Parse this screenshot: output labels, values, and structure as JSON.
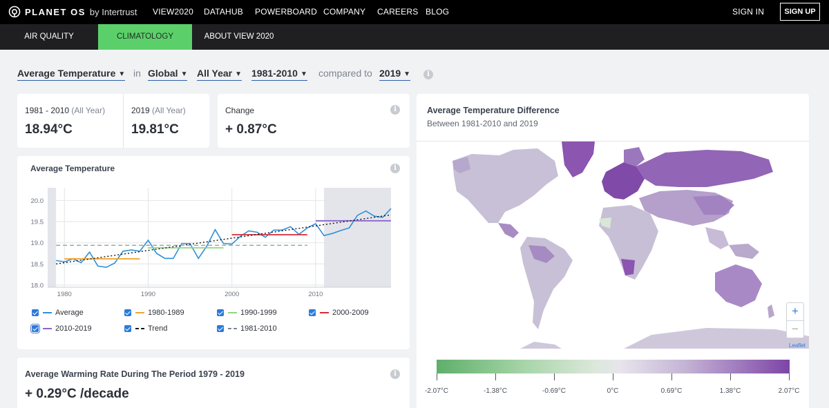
{
  "brand": {
    "name": "PLANET OS",
    "by": "by Intertrust"
  },
  "nav": {
    "items": [
      "VIEW2020",
      "DATAHUB",
      "POWERBOARD",
      "COMPANY",
      "CAREERS",
      "BLOG"
    ],
    "signin": "SIGN IN",
    "signup": "SIGN UP"
  },
  "subnav": {
    "tabs": [
      "AIR QUALITY",
      "CLIMATOLOGY",
      "ABOUT VIEW 2020"
    ],
    "active": "CLIMATOLOGY"
  },
  "filters": {
    "variable": "Average Temperature",
    "in": "in",
    "region": "Global",
    "season": "All Year",
    "baseline": "1981-2010",
    "compared": "compared to",
    "year": "2019",
    "info": "i"
  },
  "stats": {
    "baseline_label": "1981 - 2010",
    "baseline_suffix": "(All Year)",
    "baseline_value": "18.94°C",
    "current_label": "2019",
    "current_suffix": "(All Year)",
    "current_value": "19.81°C",
    "change_label": "Change",
    "change_value": "+ 0.87°C"
  },
  "chart_card": {
    "title": "Average Temperature"
  },
  "legend": [
    {
      "label": "Average",
      "color": "#2f8fd8",
      "dash": false
    },
    {
      "label": "1980-1989",
      "color": "#f0a630",
      "dash": false
    },
    {
      "label": "1990-1999",
      "color": "#8fd67a",
      "dash": false
    },
    {
      "label": "2000-2009",
      "color": "#d62a37",
      "dash": false
    },
    {
      "label": "2010-2019",
      "color": "#8c63cf",
      "dash": false
    },
    {
      "label": "Trend",
      "color": "#111111",
      "dash": true
    },
    {
      "label": "1981-2010",
      "color": "#7c8591",
      "dash": true
    }
  ],
  "warming": {
    "title": "Average Warming Rate During The Period 1979 - 2019",
    "value": "+ 0.29°C /decade"
  },
  "map": {
    "title": "Average Temperature Difference",
    "subtitle": "Between 1981-2010 and 2019",
    "zoom_in": "+",
    "zoom_out": "−",
    "attribution": "Leaflet",
    "scale_ticks": [
      "-2.07°C",
      "-1.38°C",
      "-0.69°C",
      "0°C",
      "0.69°C",
      "1.38°C",
      "2.07°C"
    ]
  },
  "chart_data": {
    "type": "line",
    "title": "Average Temperature",
    "xlim": [
      1978,
      2019
    ],
    "ylim": [
      17.95,
      20.3
    ],
    "x_ticks": [
      1980,
      1990,
      2000,
      2010
    ],
    "y_ticks": [
      18.0,
      18.5,
      19.0,
      19.5,
      20.0
    ],
    "grid": true,
    "shaded_ranges": [
      [
        1978,
        1979
      ],
      [
        2011,
        2019
      ]
    ],
    "series": [
      {
        "name": "Average",
        "color": "#2f8fd8",
        "x": [
          1979,
          1980,
          1981,
          1982,
          1983,
          1984,
          1985,
          1986,
          1987,
          1988,
          1989,
          1990,
          1991,
          1992,
          1993,
          1994,
          1995,
          1996,
          1997,
          1998,
          1999,
          2000,
          2001,
          2002,
          2003,
          2004,
          2005,
          2006,
          2007,
          2008,
          2009,
          2010,
          2011,
          2012,
          2013,
          2014,
          2015,
          2016,
          2017,
          2018,
          2019
        ],
        "y": [
          18.58,
          18.55,
          18.62,
          18.53,
          18.78,
          18.45,
          18.42,
          18.52,
          18.8,
          18.83,
          18.8,
          19.06,
          18.75,
          18.63,
          18.63,
          18.98,
          18.98,
          18.63,
          18.92,
          19.31,
          18.98,
          18.97,
          19.15,
          19.28,
          19.25,
          19.13,
          19.3,
          19.3,
          19.38,
          19.2,
          19.35,
          19.45,
          19.17,
          19.22,
          19.29,
          19.35,
          19.65,
          19.75,
          19.63,
          19.6,
          19.81
        ]
      },
      {
        "name": "1980-1989",
        "color": "#f0a630",
        "x": [
          1980,
          1989
        ],
        "y": [
          18.62,
          18.62
        ]
      },
      {
        "name": "1990-1999",
        "color": "#8fd67a",
        "x": [
          1990,
          1999
        ],
        "y": [
          18.88,
          18.88
        ]
      },
      {
        "name": "2000-2009",
        "color": "#d62a37",
        "x": [
          2000,
          2009
        ],
        "y": [
          19.19,
          19.19
        ]
      },
      {
        "name": "2010-2019",
        "color": "#8c63cf",
        "x": [
          2010,
          2019
        ],
        "y": [
          19.52,
          19.52
        ]
      },
      {
        "name": "Trend",
        "color": "#111111",
        "dash": true,
        "x": [
          1979,
          2019
        ],
        "y": [
          18.5,
          19.66
        ]
      },
      {
        "name": "1981-2010",
        "color": "#8fa59a",
        "dash": true,
        "x": [
          1979,
          2009
        ],
        "y": [
          18.94,
          18.94
        ]
      }
    ]
  }
}
